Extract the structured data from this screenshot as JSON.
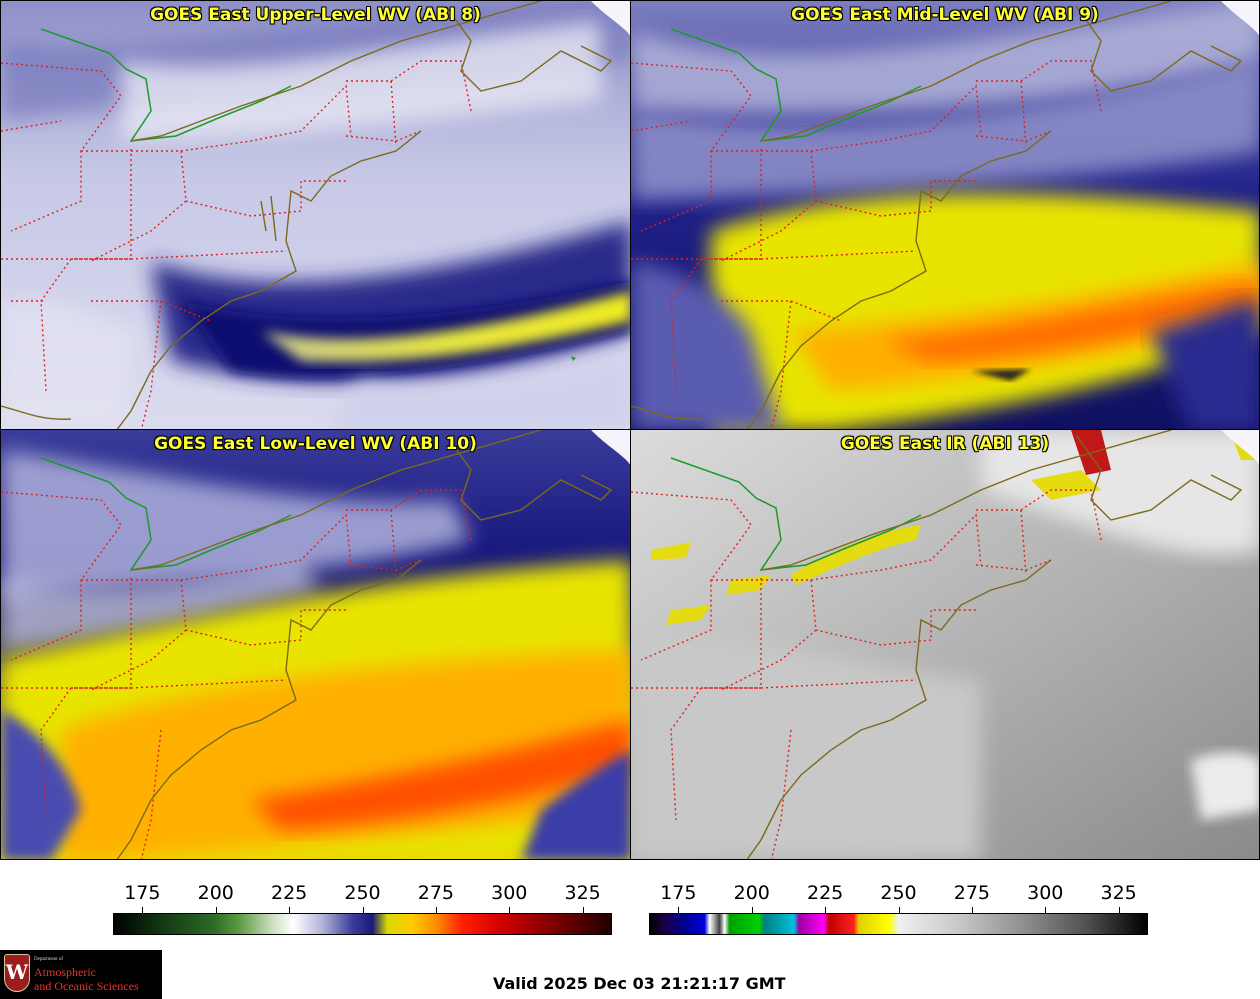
{
  "panels": [
    {
      "title": "GOES East Upper-Level WV (ABI 8)"
    },
    {
      "title": "GOES East Mid-Level WV (ABI 9)"
    },
    {
      "title": "GOES East Low-Level WV (ABI 10)"
    },
    {
      "title": "GOES East IR (ABI 13)"
    }
  ],
  "colorbars": [
    {
      "ticks": [
        "175",
        "200",
        "225",
        "250",
        "275",
        "300",
        "325"
      ]
    },
    {
      "ticks": [
        "175",
        "200",
        "225",
        "250",
        "275",
        "300",
        "325"
      ]
    }
  ],
  "logo": {
    "dept": "Department of",
    "line1": "Atmospheric",
    "line2": "and Oceanic Sciences",
    "crest_letter": "W"
  },
  "valid_time": "Valid 2025 Dec 03 21:21:17 GMT",
  "colors": {
    "state_borders": "#e0201a",
    "coastline": "#7a6a1a",
    "border_green": "#1a9a2a",
    "title_text": "#ffff33"
  }
}
